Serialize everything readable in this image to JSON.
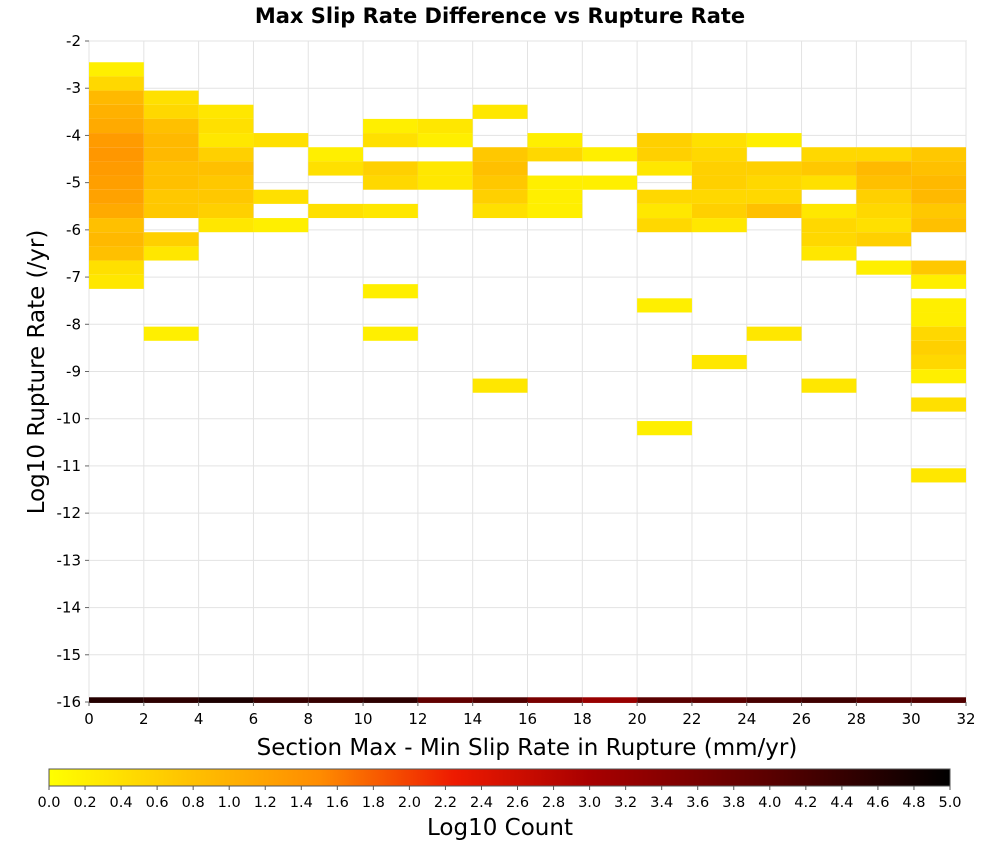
{
  "chart_data": {
    "type": "heatmap",
    "title": "Max Slip Rate Difference vs Rupture Rate",
    "xlabel": "Section Max - Min Slip Rate in Rupture (mm/yr)",
    "ylabel": "Log10 Rupture Rate (/yr)",
    "xlim": [
      0,
      32
    ],
    "ylim": [
      -16,
      -2
    ],
    "x_ticks": [
      "0",
      "2",
      "4",
      "6",
      "8",
      "10",
      "12",
      "14",
      "16",
      "18",
      "20",
      "22",
      "24",
      "26",
      "28",
      "30",
      "32"
    ],
    "y_ticks": [
      "-2",
      "-3",
      "-4",
      "-5",
      "-6",
      "-7",
      "-8",
      "-9",
      "-10",
      "-11",
      "-12",
      "-13",
      "-14",
      "-15",
      "-16"
    ],
    "grid": true,
    "x_bin_width": 2,
    "y_bin_height": 0.3,
    "colorbar": {
      "label": "Log10 Count",
      "range": [
        0,
        5
      ],
      "ticks": [
        "0.0",
        "0.2",
        "0.4",
        "0.6",
        "0.8",
        "1.0",
        "1.2",
        "1.4",
        "1.6",
        "1.8",
        "2.0",
        "2.2",
        "2.4",
        "2.6",
        "2.8",
        "3.0",
        "3.2",
        "3.4",
        "3.6",
        "3.8",
        "4.0",
        "4.2",
        "4.4",
        "4.6",
        "4.8",
        "5.0"
      ],
      "colormap": "yellow-orange-red-black"
    },
    "cells": [
      {
        "x": 0,
        "y": -2.6,
        "v": 0.2
      },
      {
        "x": 0,
        "y": -2.9,
        "v": 0.5
      },
      {
        "x": 0,
        "y": -3.2,
        "v": 0.9
      },
      {
        "x": 0,
        "y": -3.5,
        "v": 1.0
      },
      {
        "x": 0,
        "y": -3.8,
        "v": 1.1
      },
      {
        "x": 0,
        "y": -4.1,
        "v": 1.3
      },
      {
        "x": 0,
        "y": -4.4,
        "v": 1.35
      },
      {
        "x": 0,
        "y": -4.7,
        "v": 1.3
      },
      {
        "x": 0,
        "y": -5.0,
        "v": 1.25
      },
      {
        "x": 0,
        "y": -5.3,
        "v": 1.2
      },
      {
        "x": 0,
        "y": -5.6,
        "v": 1.1
      },
      {
        "x": 0,
        "y": -5.9,
        "v": 0.8
      },
      {
        "x": 0,
        "y": -6.2,
        "v": 0.9
      },
      {
        "x": 0,
        "y": -6.5,
        "v": 0.8
      },
      {
        "x": 0,
        "y": -6.8,
        "v": 0.4
      },
      {
        "x": 0,
        "y": -7.1,
        "v": 0.3
      },
      {
        "x": 2,
        "y": -3.2,
        "v": 0.4
      },
      {
        "x": 2,
        "y": -3.5,
        "v": 0.5
      },
      {
        "x": 2,
        "y": -3.8,
        "v": 0.8
      },
      {
        "x": 2,
        "y": -4.1,
        "v": 0.9
      },
      {
        "x": 2,
        "y": -4.4,
        "v": 0.9
      },
      {
        "x": 2,
        "y": -4.7,
        "v": 0.8
      },
      {
        "x": 2,
        "y": -5.0,
        "v": 0.8
      },
      {
        "x": 2,
        "y": -5.3,
        "v": 0.7
      },
      {
        "x": 2,
        "y": -5.6,
        "v": 0.7
      },
      {
        "x": 2,
        "y": -6.2,
        "v": 0.6
      },
      {
        "x": 2,
        "y": -6.5,
        "v": 0.3
      },
      {
        "x": 2,
        "y": -8.2,
        "v": 0.2
      },
      {
        "x": 4,
        "y": -3.5,
        "v": 0.3
      },
      {
        "x": 4,
        "y": -3.8,
        "v": 0.4
      },
      {
        "x": 4,
        "y": -4.1,
        "v": 0.3
      },
      {
        "x": 4,
        "y": -4.4,
        "v": 0.6
      },
      {
        "x": 4,
        "y": -4.7,
        "v": 0.8
      },
      {
        "x": 4,
        "y": -5.0,
        "v": 0.7
      },
      {
        "x": 4,
        "y": -5.3,
        "v": 0.7
      },
      {
        "x": 4,
        "y": -5.6,
        "v": 0.6
      },
      {
        "x": 4,
        "y": -5.9,
        "v": 0.3
      },
      {
        "x": 6,
        "y": -4.1,
        "v": 0.4
      },
      {
        "x": 6,
        "y": -5.3,
        "v": 0.4
      },
      {
        "x": 6,
        "y": -5.9,
        "v": 0.2
      },
      {
        "x": 8,
        "y": -4.4,
        "v": 0.2
      },
      {
        "x": 8,
        "y": -4.7,
        "v": 0.4
      },
      {
        "x": 8,
        "y": -5.6,
        "v": 0.4
      },
      {
        "x": 10,
        "y": -3.8,
        "v": 0.2
      },
      {
        "x": 10,
        "y": -4.1,
        "v": 0.4
      },
      {
        "x": 10,
        "y": -4.7,
        "v": 0.6
      },
      {
        "x": 10,
        "y": -5.0,
        "v": 0.5
      },
      {
        "x": 10,
        "y": -5.6,
        "v": 0.3
      },
      {
        "x": 10,
        "y": -7.3,
        "v": 0.2
      },
      {
        "x": 10,
        "y": -8.2,
        "v": 0.2
      },
      {
        "x": 12,
        "y": -3.8,
        "v": 0.3
      },
      {
        "x": 12,
        "y": -4.1,
        "v": 0.2
      },
      {
        "x": 12,
        "y": -4.7,
        "v": 0.3
      },
      {
        "x": 12,
        "y": -5.0,
        "v": 0.3
      },
      {
        "x": 14,
        "y": -3.5,
        "v": 0.3
      },
      {
        "x": 14,
        "y": -4.4,
        "v": 0.7
      },
      {
        "x": 14,
        "y": -4.7,
        "v": 0.8
      },
      {
        "x": 14,
        "y": -5.0,
        "v": 0.7
      },
      {
        "x": 14,
        "y": -5.3,
        "v": 0.6
      },
      {
        "x": 14,
        "y": -5.6,
        "v": 0.4
      },
      {
        "x": 14,
        "y": -9.3,
        "v": 0.3
      },
      {
        "x": 16,
        "y": -4.1,
        "v": 0.2
      },
      {
        "x": 16,
        "y": -4.4,
        "v": 0.5
      },
      {
        "x": 16,
        "y": -5.0,
        "v": 0.2
      },
      {
        "x": 16,
        "y": -5.3,
        "v": 0.2
      },
      {
        "x": 16,
        "y": -5.6,
        "v": 0.2
      },
      {
        "x": 18,
        "y": -4.4,
        "v": 0.2
      },
      {
        "x": 18,
        "y": -5.0,
        "v": 0.2
      },
      {
        "x": 20,
        "y": -4.1,
        "v": 0.6
      },
      {
        "x": 20,
        "y": -4.4,
        "v": 0.6
      },
      {
        "x": 20,
        "y": -4.7,
        "v": 0.3
      },
      {
        "x": 20,
        "y": -5.3,
        "v": 0.5
      },
      {
        "x": 20,
        "y": -5.6,
        "v": 0.3
      },
      {
        "x": 20,
        "y": -5.9,
        "v": 0.5
      },
      {
        "x": 20,
        "y": -7.6,
        "v": 0.2
      },
      {
        "x": 20,
        "y": -10.2,
        "v": 0.2
      },
      {
        "x": 22,
        "y": -4.1,
        "v": 0.4
      },
      {
        "x": 22,
        "y": -4.4,
        "v": 0.5
      },
      {
        "x": 22,
        "y": -4.7,
        "v": 0.6
      },
      {
        "x": 22,
        "y": -5.0,
        "v": 0.6
      },
      {
        "x": 22,
        "y": -5.3,
        "v": 0.5
      },
      {
        "x": 22,
        "y": -5.6,
        "v": 0.6
      },
      {
        "x": 22,
        "y": -5.9,
        "v": 0.3
      },
      {
        "x": 22,
        "y": -8.8,
        "v": 0.3
      },
      {
        "x": 24,
        "y": -4.1,
        "v": 0.2
      },
      {
        "x": 24,
        "y": -4.7,
        "v": 0.6
      },
      {
        "x": 24,
        "y": -5.0,
        "v": 0.5
      },
      {
        "x": 24,
        "y": -5.3,
        "v": 0.5
      },
      {
        "x": 24,
        "y": -5.6,
        "v": 0.8
      },
      {
        "x": 24,
        "y": -8.2,
        "v": 0.3
      },
      {
        "x": 26,
        "y": -4.4,
        "v": 0.5
      },
      {
        "x": 26,
        "y": -4.7,
        "v": 0.7
      },
      {
        "x": 26,
        "y": -5.0,
        "v": 0.4
      },
      {
        "x": 26,
        "y": -5.6,
        "v": 0.3
      },
      {
        "x": 26,
        "y": -5.9,
        "v": 0.5
      },
      {
        "x": 26,
        "y": -6.2,
        "v": 0.5
      },
      {
        "x": 26,
        "y": -6.5,
        "v": 0.3
      },
      {
        "x": 26,
        "y": -9.3,
        "v": 0.3
      },
      {
        "x": 28,
        "y": -4.4,
        "v": 0.5
      },
      {
        "x": 28,
        "y": -4.7,
        "v": 0.9
      },
      {
        "x": 28,
        "y": -5.0,
        "v": 0.8
      },
      {
        "x": 28,
        "y": -5.3,
        "v": 0.6
      },
      {
        "x": 28,
        "y": -5.6,
        "v": 0.5
      },
      {
        "x": 28,
        "y": -5.9,
        "v": 0.4
      },
      {
        "x": 28,
        "y": -6.2,
        "v": 0.6
      },
      {
        "x": 28,
        "y": -6.8,
        "v": 0.2
      },
      {
        "x": 30,
        "y": -4.4,
        "v": 0.7
      },
      {
        "x": 30,
        "y": -4.7,
        "v": 0.8
      },
      {
        "x": 30,
        "y": -5.0,
        "v": 0.9
      },
      {
        "x": 30,
        "y": -5.3,
        "v": 0.9
      },
      {
        "x": 30,
        "y": -5.6,
        "v": 0.7
      },
      {
        "x": 30,
        "y": -5.9,
        "v": 0.8
      },
      {
        "x": 30,
        "y": -6.8,
        "v": 0.7
      },
      {
        "x": 30,
        "y": -7.1,
        "v": 0.2
      },
      {
        "x": 30,
        "y": -7.6,
        "v": 0.2
      },
      {
        "x": 30,
        "y": -7.9,
        "v": 0.2
      },
      {
        "x": 30,
        "y": -8.2,
        "v": 0.5
      },
      {
        "x": 30,
        "y": -8.5,
        "v": 0.6
      },
      {
        "x": 30,
        "y": -8.8,
        "v": 0.5
      },
      {
        "x": 30,
        "y": -9.1,
        "v": 0.2
      },
      {
        "x": 30,
        "y": -9.7,
        "v": 0.4
      },
      {
        "x": 30,
        "y": -11.2,
        "v": 0.3
      }
    ],
    "bottom_row": {
      "y": -16,
      "values": [
        4.6,
        4.5,
        4.7,
        4.4,
        4.4,
        4.5,
        3.9,
        4.1,
        3.6,
        3.2,
        4.0,
        4.0,
        4.2,
        4.3,
        4.1,
        4.1
      ]
    }
  }
}
